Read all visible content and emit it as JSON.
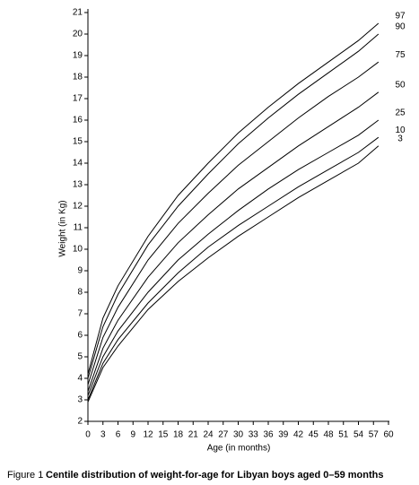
{
  "chart_data": {
    "type": "line",
    "x_label": "Age (in months)",
    "y_label": "Weight (in Kg)",
    "caption_prefix": "Figure 1",
    "caption": "Centile distribution of weight-for-age for Libyan boys aged 0–59 months",
    "x": [
      0,
      3,
      6,
      12,
      18,
      24,
      30,
      36,
      42,
      48,
      54,
      58
    ],
    "series": [
      {
        "name": "97",
        "color": "#000000",
        "values": [
          4.2,
          6.8,
          8.3,
          10.6,
          12.5,
          14.0,
          15.4,
          16.6,
          17.7,
          18.7,
          19.7,
          20.5
        ]
      },
      {
        "name": "90",
        "color": "#000000",
        "values": [
          4.0,
          6.4,
          7.9,
          10.2,
          12.0,
          13.5,
          14.9,
          16.1,
          17.2,
          18.2,
          19.2,
          20.0
        ]
      },
      {
        "name": "75",
        "color": "#000000",
        "values": [
          3.7,
          5.9,
          7.3,
          9.5,
          11.2,
          12.6,
          13.9,
          15.0,
          16.1,
          17.1,
          18.0,
          18.7
        ]
      },
      {
        "name": "50",
        "color": "#000000",
        "values": [
          3.4,
          5.4,
          6.7,
          8.7,
          10.3,
          11.6,
          12.8,
          13.8,
          14.8,
          15.7,
          16.6,
          17.3
        ]
      },
      {
        "name": "25",
        "color": "#000000",
        "values": [
          3.2,
          5.0,
          6.2,
          8.0,
          9.5,
          10.7,
          11.8,
          12.8,
          13.7,
          14.5,
          15.3,
          16.0
        ]
      },
      {
        "name": "10",
        "color": "#000000",
        "values": [
          3.0,
          4.7,
          5.8,
          7.5,
          8.9,
          10.1,
          11.1,
          12.0,
          12.9,
          13.7,
          14.5,
          15.2
        ]
      },
      {
        "name": "3",
        "color": "#000000",
        "values": [
          2.9,
          4.5,
          5.5,
          7.2,
          8.5,
          9.6,
          10.6,
          11.5,
          12.4,
          13.2,
          14.0,
          14.8
        ]
      }
    ],
    "xlim": [
      0,
      60
    ],
    "xticks": [
      0,
      3,
      6,
      9,
      12,
      15,
      18,
      21,
      24,
      27,
      30,
      33,
      36,
      39,
      42,
      45,
      48,
      51,
      54,
      57,
      60
    ],
    "ylim": [
      2,
      21
    ],
    "yticks": [
      2,
      3,
      4,
      5,
      6,
      7,
      8,
      9,
      10,
      11,
      12,
      13,
      14,
      15,
      16,
      17,
      18,
      19,
      20,
      21
    ],
    "grid": false
  }
}
